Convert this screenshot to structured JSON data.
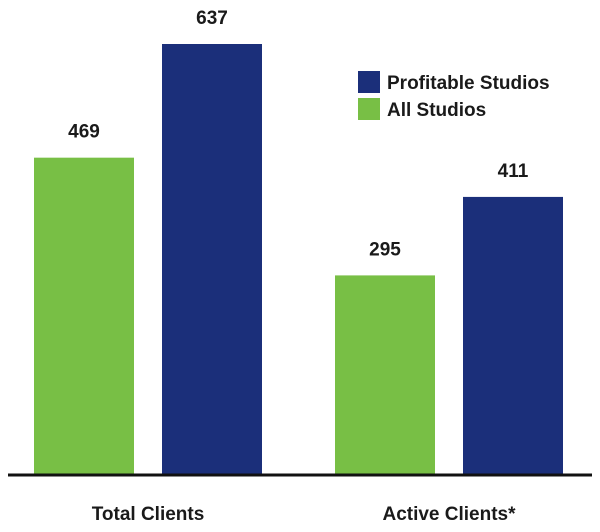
{
  "chart_data": {
    "type": "bar",
    "title": "",
    "xlabel": "",
    "ylabel": "",
    "categories": [
      "Total Clients",
      "Active Clients*"
    ],
    "series": [
      {
        "name": "All Studios",
        "color": "#78bf45",
        "values": [
          469,
          295
        ]
      },
      {
        "name": "Profitable Studios",
        "color": "#1b2f7a",
        "values": [
          637,
          411
        ]
      }
    ],
    "legend": {
      "placement": "top-right",
      "order": [
        "Profitable Studios",
        "All Studios"
      ]
    },
    "ylim": [
      0,
      637
    ],
    "grid": false,
    "axis_color": "#111111"
  }
}
